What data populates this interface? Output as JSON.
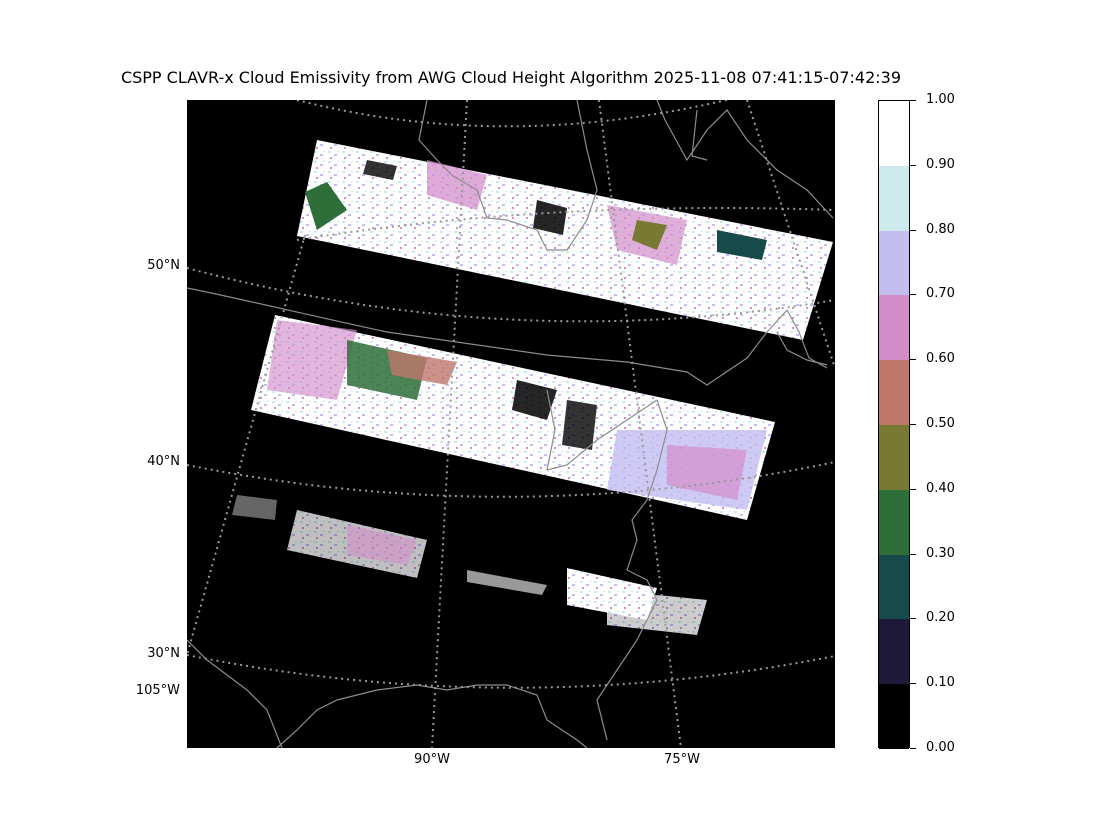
{
  "title": "CSPP CLAVR-x Cloud Emissivity from AWG Cloud Height Algorithm 2025-11-08 07:41:15-07:42:39",
  "map": {
    "lat_labels": [
      "50°N",
      "40°N",
      "30°N"
    ],
    "lon_labels": [
      "105°W",
      "90°W",
      "75°W"
    ],
    "background_color": "#000000",
    "gridline_color": "#999999",
    "coastline_color": "#8c8c8c"
  },
  "colorbar": {
    "tick_labels": [
      "1.00",
      "0.90",
      "0.80",
      "0.70",
      "0.60",
      "0.50",
      "0.40",
      "0.30",
      "0.20",
      "0.10",
      "0.00"
    ],
    "colors_top_to_bottom": [
      "#ffffff",
      "#cce9ec",
      "#c3bdf0",
      "#d38dc9",
      "#bf776b",
      "#787a33",
      "#2e6e38",
      "#174a4b",
      "#1f1a3a",
      "#000000"
    ]
  }
}
